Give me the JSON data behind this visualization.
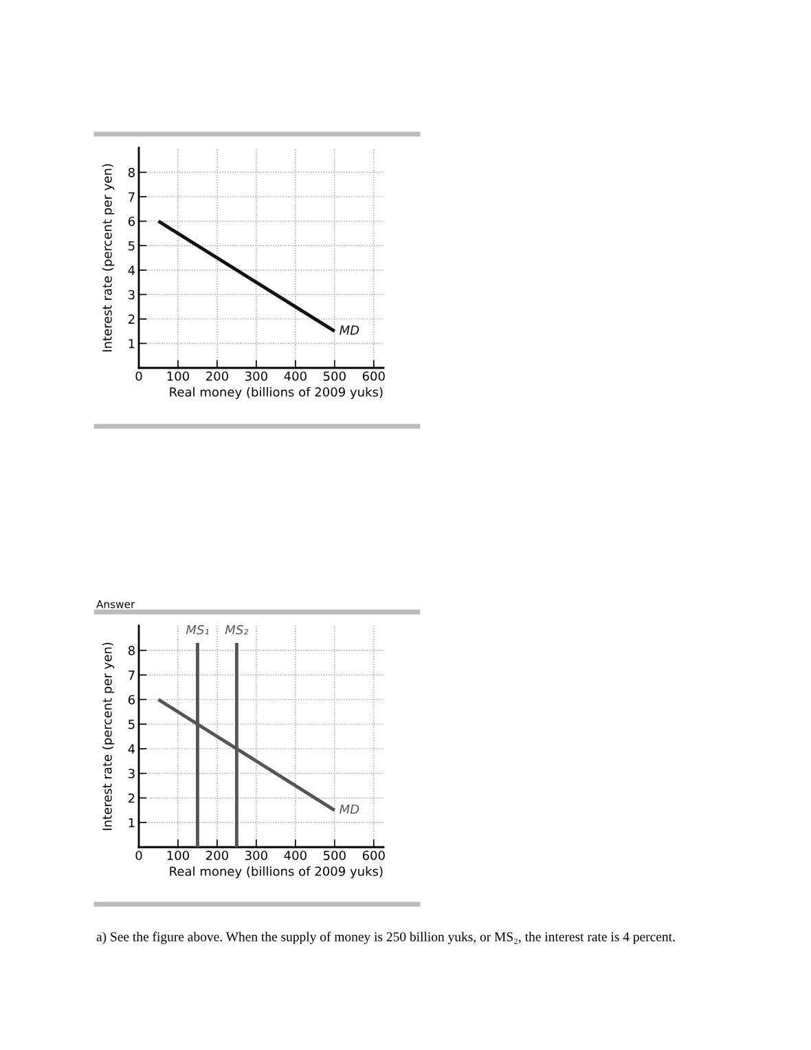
{
  "chart_data": [
    {
      "type": "line",
      "xlabel": "Real money (billions of 2009 yuks)",
      "ylabel": "Interest rate (percent per yen)",
      "xlim": [
        0,
        625
      ],
      "ylim": [
        0,
        9
      ],
      "xticks": [
        0,
        100,
        200,
        300,
        400,
        500,
        600
      ],
      "yticks": [
        1,
        2,
        3,
        4,
        5,
        6,
        7,
        8
      ],
      "grid": true,
      "legend": false,
      "series": [
        {
          "name": "MD",
          "color": "#111111",
          "x": [
            50,
            500
          ],
          "values": [
            6,
            1.5
          ]
        }
      ]
    },
    {
      "type": "line",
      "title": "Answer",
      "xlabel": "Real money (billions of 2009 yuks)",
      "ylabel": "Interest rate (percent per yen)",
      "xlim": [
        0,
        625
      ],
      "ylim": [
        0,
        9
      ],
      "xticks": [
        0,
        100,
        200,
        300,
        400,
        500,
        600
      ],
      "yticks": [
        1,
        2,
        3,
        4,
        5,
        6,
        7,
        8
      ],
      "grid": true,
      "legend": false,
      "annotations": [
        "a) See the figure above. When the supply of money is 250 billion yuks, or MS₂, the interest rate is 4 percent."
      ],
      "series": [
        {
          "name": "MD",
          "color": "#555555",
          "x": [
            50,
            500
          ],
          "values": [
            6,
            1.5
          ]
        },
        {
          "name": "MS₁",
          "color": "#555555",
          "x": [
            150,
            150
          ],
          "values": [
            0,
            8.3
          ]
        },
        {
          "name": "MS₂",
          "color": "#555555",
          "x": [
            250,
            250
          ],
          "values": [
            0,
            8.3
          ]
        }
      ]
    }
  ]
}
